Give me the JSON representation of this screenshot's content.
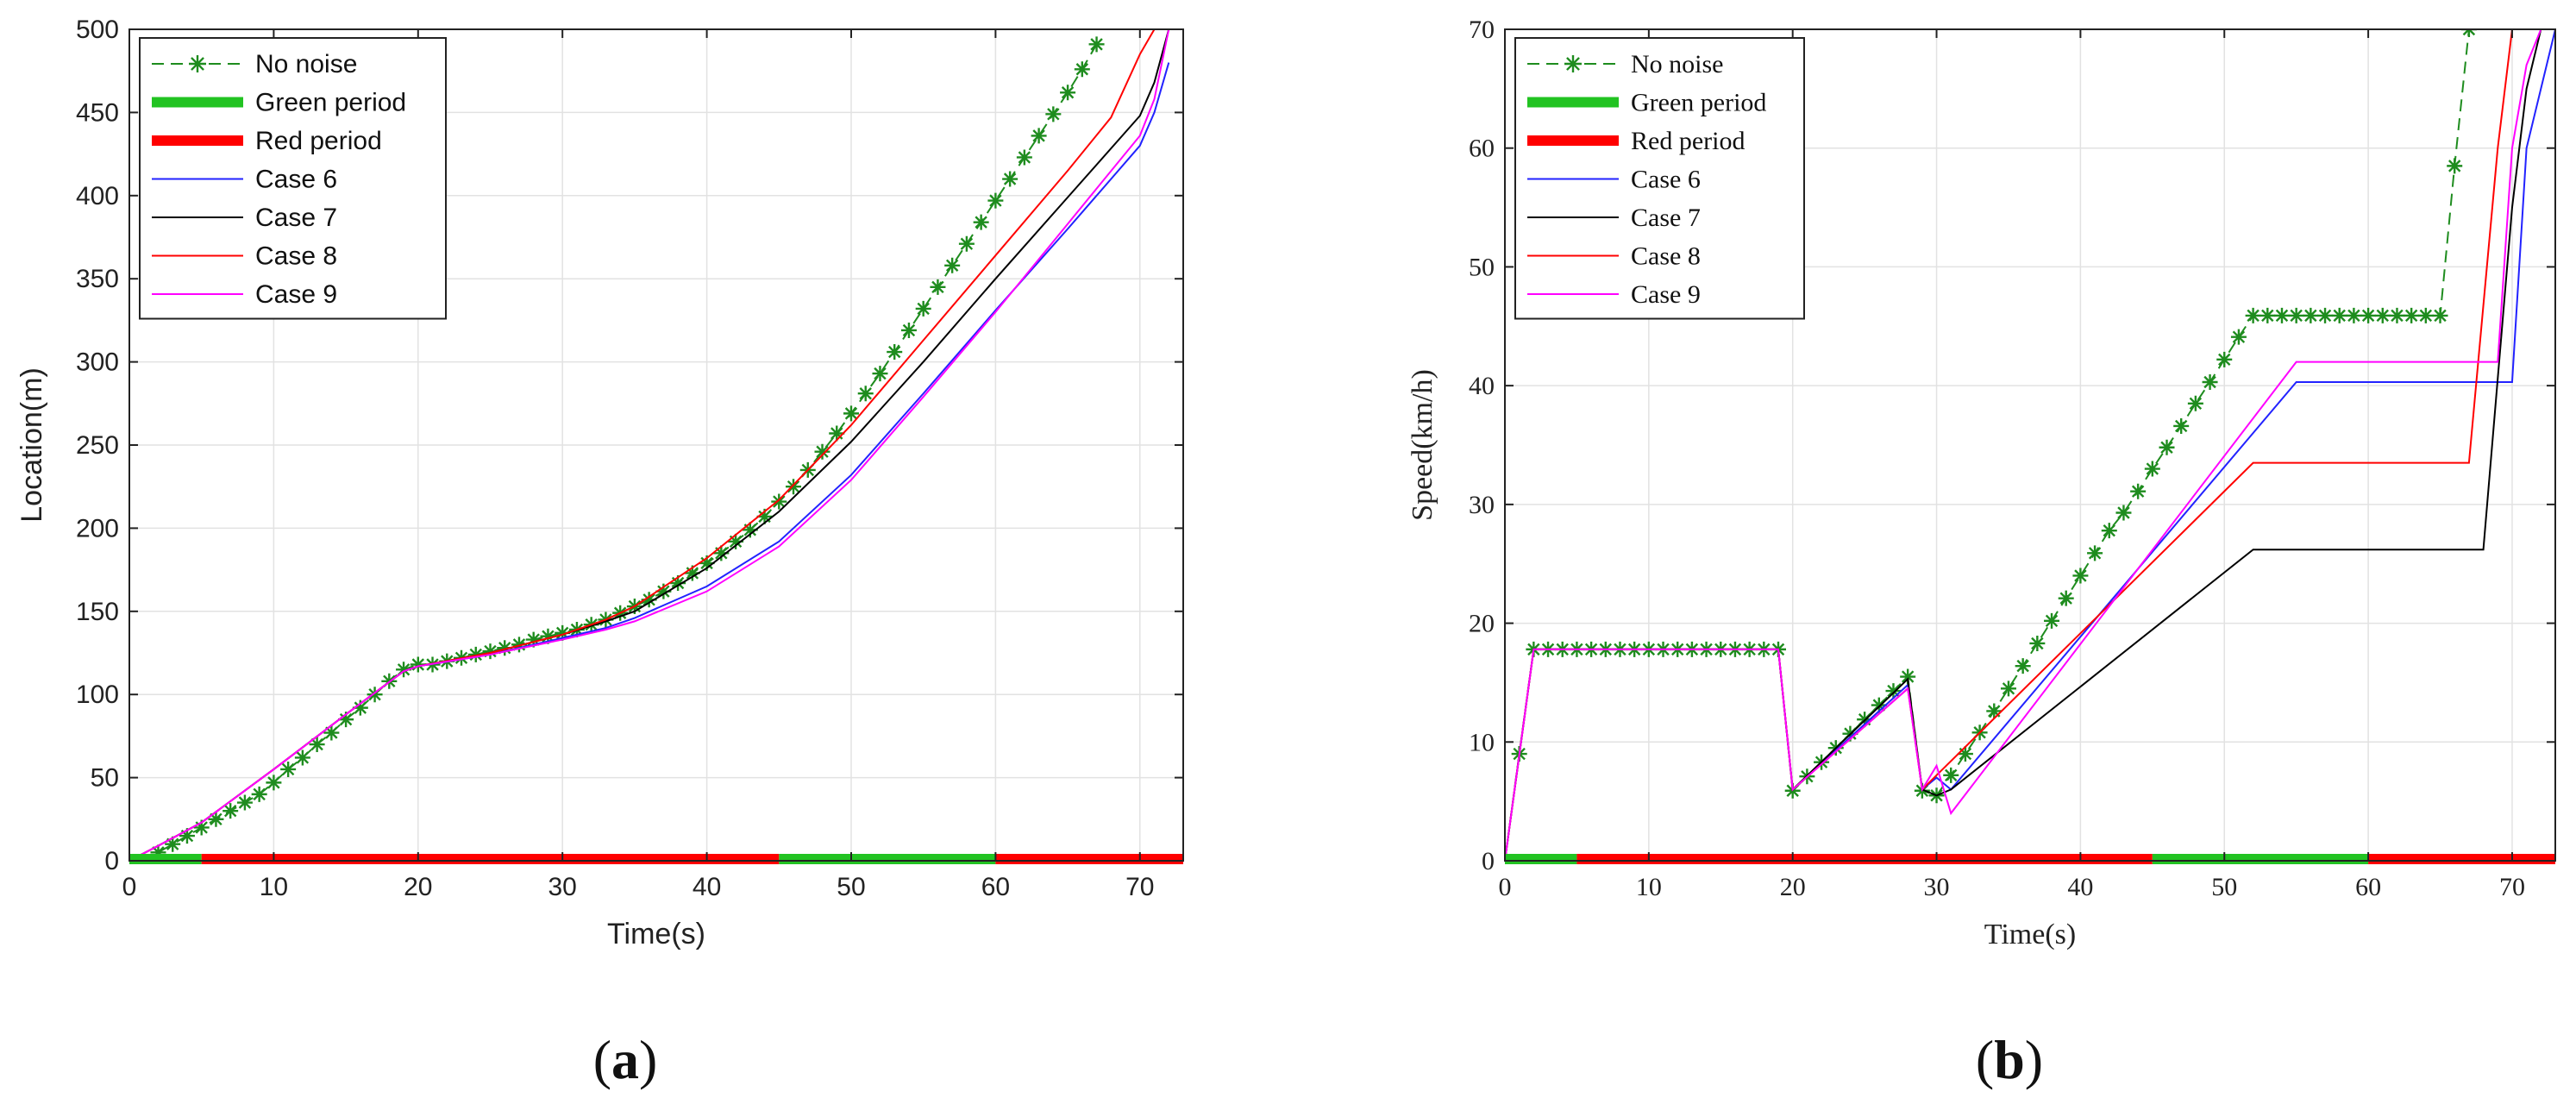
{
  "chart_data": [
    {
      "type": "line",
      "caption": "(a)",
      "xlabel": "Time(s)",
      "ylabel": "Location(m)",
      "xlim": [
        0,
        73
      ],
      "ylim": [
        0,
        500
      ],
      "xticks": [
        0,
        10,
        20,
        30,
        40,
        50,
        60,
        70
      ],
      "yticks": [
        0,
        50,
        100,
        150,
        200,
        250,
        300,
        350,
        400,
        450,
        500
      ],
      "grid": true,
      "legend_position": "top-left",
      "signal_phases": [
        {
          "name": "Green period",
          "start": 0,
          "end": 5,
          "color": "#22c322"
        },
        {
          "name": "Red period",
          "start": 5,
          "end": 45,
          "color": "#ff0000"
        },
        {
          "name": "Green period",
          "start": 45,
          "end": 60,
          "color": "#22c322"
        },
        {
          "name": "Red period",
          "start": 60,
          "end": 73,
          "color": "#ff0000"
        }
      ],
      "series": [
        {
          "name": "No noise",
          "color": "#1e8c1e",
          "style": "dashed-star",
          "x": [
            1,
            2,
            3,
            4,
            5,
            6,
            7,
            8,
            9,
            10,
            11,
            12,
            13,
            14,
            15,
            16,
            17,
            18,
            19,
            20,
            21,
            22,
            23,
            24,
            25,
            26,
            27,
            28,
            29,
            30,
            31,
            32,
            33,
            34,
            35,
            36,
            37,
            38,
            39,
            40,
            41,
            42,
            43,
            44,
            45,
            46,
            47,
            48,
            49,
            50,
            51,
            52,
            53,
            54,
            55,
            56,
            57,
            58,
            59,
            60,
            61,
            62,
            63,
            64,
            65,
            66,
            67
          ],
          "y": [
            0,
            5,
            10,
            15,
            20,
            25,
            30,
            35,
            40,
            47,
            55,
            62,
            70,
            77,
            85,
            92,
            100,
            108,
            115,
            118,
            118,
            120,
            122,
            124,
            126,
            128,
            130,
            133,
            135,
            137,
            139,
            142,
            145,
            149,
            153,
            157,
            162,
            167,
            173,
            179,
            185,
            192,
            199,
            207,
            216,
            225,
            235,
            246,
            257,
            269,
            281,
            293,
            306,
            319,
            332,
            345,
            358,
            371,
            384,
            397,
            410,
            423,
            436,
            449,
            462,
            476,
            491
          ]
        },
        {
          "name": "Green period",
          "color": "#22c322",
          "style": "thick"
        },
        {
          "name": "Red period",
          "color": "#ff0000",
          "style": "thick"
        },
        {
          "name": "Case 6",
          "color": "#2222ff",
          "style": "solid",
          "x": [
            0,
            2,
            5,
            10,
            15,
            19,
            20,
            25,
            30,
            33,
            35,
            40,
            45,
            50,
            55,
            60,
            65,
            70,
            71,
            72
          ],
          "y": [
            0,
            9,
            23,
            55,
            88,
            114,
            117,
            124,
            134,
            140,
            146,
            165,
            192,
            232,
            281,
            331,
            380,
            430,
            450,
            480
          ]
        },
        {
          "name": "Case 7",
          "color": "#000000",
          "style": "solid",
          "x": [
            0,
            2,
            5,
            10,
            15,
            19,
            20,
            25,
            30,
            33,
            35,
            40,
            45,
            50,
            55,
            60,
            65,
            70,
            71,
            72
          ],
          "y": [
            0,
            9,
            23,
            55,
            88,
            114,
            117,
            125,
            136,
            144,
            150,
            176,
            210,
            252,
            300,
            350,
            399,
            448,
            468,
            500
          ]
        },
        {
          "name": "Case 8",
          "color": "#ff0000",
          "style": "solid",
          "x": [
            0,
            2,
            5,
            10,
            15,
            19,
            20,
            25,
            30,
            33,
            35,
            40,
            45,
            50,
            55,
            60,
            65,
            68,
            70,
            71
          ],
          "y": [
            0,
            9,
            23,
            55,
            88,
            114,
            117,
            125,
            136,
            145,
            153,
            182,
            217,
            262,
            313,
            364,
            415,
            447,
            485,
            500
          ]
        },
        {
          "name": "Case 9",
          "color": "#ff00ff",
          "style": "solid",
          "x": [
            0,
            2,
            5,
            10,
            15,
            19,
            20,
            25,
            30,
            33,
            35,
            40,
            45,
            50,
            55,
            60,
            65,
            70,
            71,
            72
          ],
          "y": [
            0,
            9,
            23,
            55,
            88,
            114,
            117,
            124,
            133,
            139,
            144,
            162,
            189,
            229,
            279,
            330,
            383,
            436,
            458,
            500
          ]
        }
      ]
    },
    {
      "type": "line",
      "caption": "(b)",
      "xlabel": "Time(s)",
      "ylabel": "Speed(km/h)",
      "xlim": [
        0,
        73
      ],
      "ylim": [
        0,
        70
      ],
      "xticks": [
        0,
        10,
        20,
        30,
        40,
        50,
        60,
        70
      ],
      "yticks": [
        0,
        10,
        20,
        30,
        40,
        50,
        60,
        70
      ],
      "grid": true,
      "legend_position": "top-left",
      "signal_phases": [
        {
          "name": "Green period",
          "start": 0,
          "end": 5,
          "color": "#22c322"
        },
        {
          "name": "Red period",
          "start": 5,
          "end": 45,
          "color": "#ff0000"
        },
        {
          "name": "Green period",
          "start": 45,
          "end": 60,
          "color": "#22c322"
        },
        {
          "name": "Red period",
          "start": 60,
          "end": 73,
          "color": "#ff0000"
        }
      ],
      "series": [
        {
          "name": "No noise",
          "color": "#1e8c1e",
          "style": "dashed-star",
          "x": [
            0,
            1,
            2,
            3,
            4,
            5,
            6,
            7,
            8,
            9,
            10,
            11,
            12,
            13,
            14,
            15,
            16,
            17,
            18,
            19,
            20,
            21,
            22,
            23,
            24,
            25,
            26,
            27,
            28,
            29,
            30,
            31,
            32,
            33,
            34,
            35,
            36,
            37,
            38,
            39,
            40,
            41,
            42,
            43,
            44,
            45,
            46,
            47,
            48,
            49,
            50,
            51,
            52,
            53,
            54,
            55,
            56,
            57,
            58,
            59,
            60,
            61,
            62,
            63,
            64,
            65,
            66,
            67
          ],
          "y": [
            0,
            9,
            17.8,
            17.8,
            17.8,
            17.8,
            17.8,
            17.8,
            17.8,
            17.8,
            17.8,
            17.8,
            17.8,
            17.8,
            17.8,
            17.8,
            17.8,
            17.8,
            17.8,
            17.8,
            5.9,
            7.1,
            8.3,
            9.5,
            10.7,
            11.9,
            13.1,
            14.3,
            15.5,
            5.9,
            5.5,
            7.2,
            9.0,
            10.8,
            12.6,
            14.5,
            16.4,
            18.3,
            20.2,
            22.1,
            24.0,
            25.9,
            27.8,
            29.3,
            31.1,
            33.0,
            34.8,
            36.6,
            38.5,
            40.3,
            42.2,
            44.1,
            45.9,
            45.9,
            45.9,
            45.9,
            45.9,
            45.9,
            45.9,
            45.9,
            45.9,
            45.9,
            45.9,
            45.9,
            45.9,
            45.9,
            58.5,
            70
          ]
        },
        {
          "name": "Green period",
          "color": "#22c322",
          "style": "thick"
        },
        {
          "name": "Red period",
          "color": "#ff0000",
          "style": "thick"
        },
        {
          "name": "Case 6",
          "color": "#2222ff",
          "style": "solid",
          "x": [
            0,
            2,
            19,
            20,
            28,
            29,
            30,
            31,
            55,
            70,
            71,
            72,
            73
          ],
          "y": [
            0,
            17.8,
            17.8,
            6,
            14.8,
            6,
            7,
            6,
            40.3,
            40.3,
            60,
            65,
            70
          ]
        },
        {
          "name": "Case 7",
          "color": "#000000",
          "style": "solid",
          "x": [
            0,
            2,
            19,
            20,
            28,
            29,
            30,
            31,
            52,
            68,
            70,
            71,
            72
          ],
          "y": [
            0,
            17.8,
            17.8,
            6,
            15.3,
            6,
            5.5,
            6,
            26.2,
            26.2,
            55,
            65,
            70
          ]
        },
        {
          "name": "Case 8",
          "color": "#ff0000",
          "style": "solid",
          "x": [
            0,
            2,
            19,
            20,
            28,
            29,
            30,
            52,
            67,
            69,
            70
          ],
          "y": [
            0,
            17.8,
            17.8,
            6,
            14.5,
            6,
            7.2,
            33.5,
            33.5,
            60,
            70
          ]
        },
        {
          "name": "Case 9",
          "color": "#ff00ff",
          "style": "solid",
          "x": [
            0,
            2,
            19,
            20,
            28,
            29,
            30,
            31,
            55,
            69,
            70,
            71,
            72
          ],
          "y": [
            0,
            17.8,
            17.8,
            6,
            14.5,
            6,
            8,
            4,
            42,
            42,
            60,
            67,
            70
          ]
        }
      ]
    }
  ]
}
